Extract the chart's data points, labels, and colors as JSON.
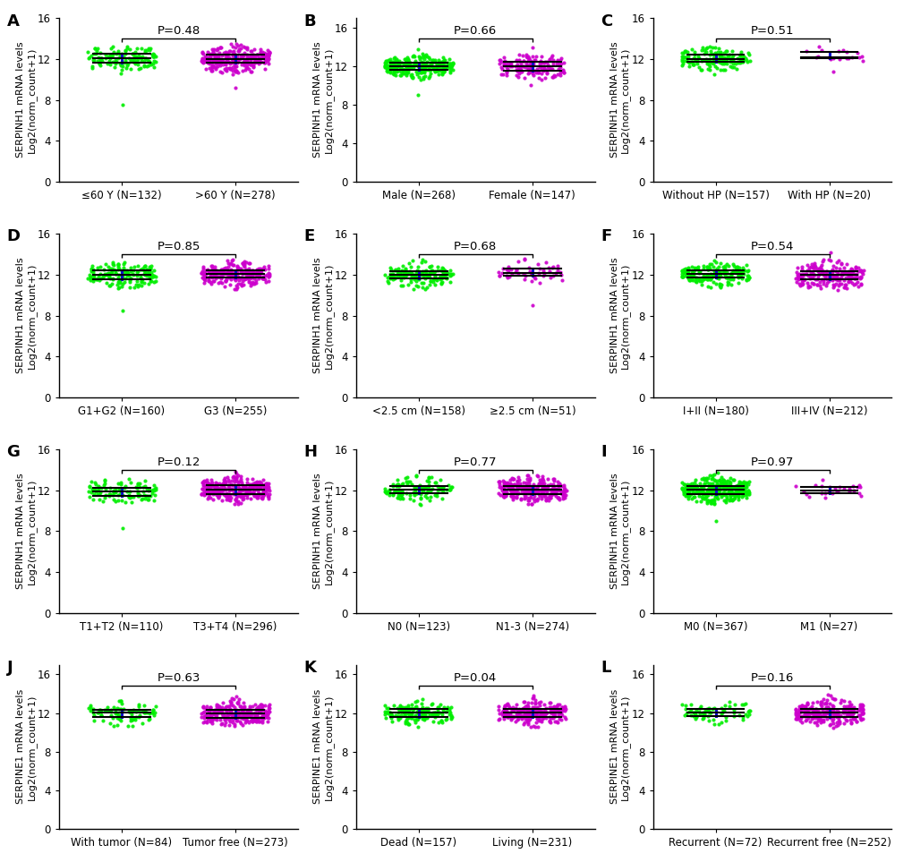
{
  "panels": [
    {
      "label": "A",
      "pval": "P=0.48",
      "groups": [
        {
          "name": "≤60 Y (N=132)",
          "n": 132,
          "color": "#00ee00",
          "mean": 12.0,
          "sd": 0.55,
          "ymin": 10.2,
          "ymax": 14.8,
          "outlier_low": 7.5
        },
        {
          "name": ">60 Y (N=278)",
          "n": 278,
          "color": "#cc00cc",
          "mean": 12.0,
          "sd": 0.65,
          "ymin": 10.5,
          "ymax": 14.2,
          "outlier_low": 9.2
        }
      ],
      "ylim": [
        0,
        16
      ],
      "yticks": [
        0,
        4,
        8,
        12,
        16
      ],
      "ylabel": "SERPINH1 mRNA levels\nLog2(norm_count+1)"
    },
    {
      "label": "B",
      "pval": "P=0.66",
      "groups": [
        {
          "name": "Male (N=268)",
          "n": 268,
          "color": "#00ee00",
          "mean": 12.0,
          "sd": 0.55,
          "ymin": 10.5,
          "ymax": 13.8,
          "outlier_low": 9.0
        },
        {
          "name": "Female (N=147)",
          "n": 147,
          "color": "#cc00cc",
          "mean": 12.0,
          "sd": 0.65,
          "ymin": 10.5,
          "ymax": 14.5,
          "outlier_low": 10.0
        }
      ],
      "ylim": [
        0,
        17
      ],
      "yticks": [
        0,
        4,
        8,
        12,
        16
      ],
      "ylabel": "SERPINH1 mRNA levels\nLog2(norm_count+1)"
    },
    {
      "label": "C",
      "pval": "P=0.51",
      "groups": [
        {
          "name": "Without HP (N=157)",
          "n": 157,
          "color": "#00ee00",
          "mean": 12.0,
          "sd": 0.55,
          "ymin": 10.5,
          "ymax": 14.2,
          "outlier_low": null
        },
        {
          "name": "With HP (N=20)",
          "n": 20,
          "color": "#cc00cc",
          "mean": 12.3,
          "sd": 0.5,
          "ymin": 11.5,
          "ymax": 13.2,
          "outlier_low": 10.8
        }
      ],
      "ylim": [
        0,
        16
      ],
      "yticks": [
        0,
        4,
        8,
        12,
        16
      ],
      "ylabel": "SERPINH1 mRNA levels\nLog2(norm_count+1)"
    },
    {
      "label": "D",
      "pval": "P=0.85",
      "groups": [
        {
          "name": "G1+G2 (N=160)",
          "n": 160,
          "color": "#00ee00",
          "mean": 12.0,
          "sd": 0.55,
          "ymin": 10.5,
          "ymax": 14.0,
          "outlier_low": 8.5
        },
        {
          "name": "G3 (N=255)",
          "n": 255,
          "color": "#cc00cc",
          "mean": 12.0,
          "sd": 0.6,
          "ymin": 10.5,
          "ymax": 14.0,
          "outlier_low": null
        }
      ],
      "ylim": [
        0,
        16
      ],
      "yticks": [
        0,
        4,
        8,
        12,
        16
      ],
      "ylabel": "SERPINH1 mRNA levels\nLog2(norm_count+1)"
    },
    {
      "label": "E",
      "pval": "P=0.68",
      "groups": [
        {
          "name": "<2.5 cm (N=158)",
          "n": 158,
          "color": "#00ee00",
          "mean": 12.0,
          "sd": 0.55,
          "ymin": 10.5,
          "ymax": 14.0,
          "outlier_low": null
        },
        {
          "name": "≥2.5 cm (N=51)",
          "n": 51,
          "color": "#cc00cc",
          "mean": 12.2,
          "sd": 0.6,
          "ymin": 11.0,
          "ymax": 14.2,
          "outlier_low": 9.0
        }
      ],
      "ylim": [
        0,
        16
      ],
      "yticks": [
        0,
        4,
        8,
        12,
        16
      ],
      "ylabel": "SERPINH1 mRNA levels\nLog2(norm_count+1)"
    },
    {
      "label": "F",
      "pval": "P=0.54",
      "groups": [
        {
          "name": "I+II (N=180)",
          "n": 180,
          "color": "#00ee00",
          "mean": 12.0,
          "sd": 0.55,
          "ymin": 10.5,
          "ymax": 14.2,
          "outlier_low": null
        },
        {
          "name": "III+IV (N=212)",
          "n": 212,
          "color": "#cc00cc",
          "mean": 12.0,
          "sd": 0.65,
          "ymin": 10.5,
          "ymax": 14.5,
          "outlier_low": null
        }
      ],
      "ylim": [
        0,
        16
      ],
      "yticks": [
        0,
        4,
        8,
        12,
        16
      ],
      "ylabel": "SERPINH1 mRNA levels\nLog2(norm_count+1)"
    },
    {
      "label": "G",
      "pval": "P=0.12",
      "groups": [
        {
          "name": "T1+T2 (N=110)",
          "n": 110,
          "color": "#00ee00",
          "mean": 11.85,
          "sd": 0.55,
          "ymin": 10.5,
          "ymax": 13.8,
          "outlier_low": 8.3
        },
        {
          "name": "T3+T4 (N=296)",
          "n": 296,
          "color": "#cc00cc",
          "mean": 12.1,
          "sd": 0.6,
          "ymin": 10.5,
          "ymax": 14.5,
          "outlier_low": null
        }
      ],
      "ylim": [
        0,
        16
      ],
      "yticks": [
        0,
        4,
        8,
        12,
        16
      ],
      "ylabel": "SERPINH1 mRNA levels\nLog2(norm_count+1)"
    },
    {
      "label": "H",
      "pval": "P=0.77",
      "groups": [
        {
          "name": "N0 (N=123)",
          "n": 123,
          "color": "#00ee00",
          "mean": 12.0,
          "sd": 0.55,
          "ymin": 10.5,
          "ymax": 14.2,
          "outlier_low": null
        },
        {
          "name": "N1-3 (N=274)",
          "n": 274,
          "color": "#cc00cc",
          "mean": 12.0,
          "sd": 0.6,
          "ymin": 10.5,
          "ymax": 14.5,
          "outlier_low": null
        }
      ],
      "ylim": [
        0,
        16
      ],
      "yticks": [
        0,
        4,
        8,
        12,
        16
      ],
      "ylabel": "SERPINH1 mRNA levels\nLog2(norm_count+1)"
    },
    {
      "label": "I",
      "pval": "P=0.97",
      "groups": [
        {
          "name": "M0 (N=367)",
          "n": 367,
          "color": "#00ee00",
          "mean": 12.0,
          "sd": 0.55,
          "ymin": 10.5,
          "ymax": 14.5,
          "outlier_low": 9.0
        },
        {
          "name": "M1 (N=27)",
          "n": 27,
          "color": "#cc00cc",
          "mean": 12.05,
          "sd": 0.45,
          "ymin": 11.2,
          "ymax": 13.1,
          "outlier_low": null
        }
      ],
      "ylim": [
        0,
        16
      ],
      "yticks": [
        0,
        4,
        8,
        12,
        16
      ],
      "ylabel": "SERPINH1 mRNA levels\nLog2(norm_count+1)"
    },
    {
      "label": "J",
      "pval": "P=0.63",
      "groups": [
        {
          "name": "With tumor (N=84)",
          "n": 84,
          "color": "#00ee00",
          "mean": 12.0,
          "sd": 0.6,
          "ymin": 10.5,
          "ymax": 13.5,
          "outlier_low": null
        },
        {
          "name": "Tumor free (N=273)",
          "n": 273,
          "color": "#cc00cc",
          "mean": 12.0,
          "sd": 0.65,
          "ymin": 10.5,
          "ymax": 15.0,
          "outlier_low": null
        }
      ],
      "ylim": [
        0,
        17
      ],
      "yticks": [
        0,
        4,
        8,
        12,
        16
      ],
      "ylabel": "SERPINE1 mRNA levels\nLog2(norm_count+1)"
    },
    {
      "label": "K",
      "pval": "P=0.04",
      "groups": [
        {
          "name": "Dead (N=157)",
          "n": 157,
          "color": "#00ee00",
          "mean": 12.0,
          "sd": 0.55,
          "ymin": 10.5,
          "ymax": 13.5,
          "outlier_low": null
        },
        {
          "name": "Living (N=231)",
          "n": 231,
          "color": "#cc00cc",
          "mean": 12.05,
          "sd": 0.6,
          "ymin": 10.5,
          "ymax": 14.5,
          "outlier_low": null
        }
      ],
      "ylim": [
        0,
        17
      ],
      "yticks": [
        0,
        4,
        8,
        12,
        16
      ],
      "ylabel": "SERPINE1 mRNA levels\nLog2(norm_count+1)"
    },
    {
      "label": "L",
      "pval": "P=0.16",
      "groups": [
        {
          "name": "Recurrent (N=72)",
          "n": 72,
          "color": "#00ee00",
          "mean": 12.0,
          "sd": 0.55,
          "ymin": 10.5,
          "ymax": 13.2,
          "outlier_low": null
        },
        {
          "name": "Recurrent free (N=252)",
          "n": 252,
          "color": "#cc00cc",
          "mean": 12.0,
          "sd": 0.65,
          "ymin": 10.5,
          "ymax": 14.5,
          "outlier_low": null
        }
      ],
      "ylim": [
        0,
        17
      ],
      "yticks": [
        0,
        4,
        8,
        12,
        16
      ],
      "ylabel": "SERPINE1 mRNA levels\nLog2(norm_count+1)"
    }
  ],
  "green_color": "#22dd00",
  "magenta_color": "#cc00cc",
  "blue_color": "#1010cc",
  "dot_size": 9,
  "dot_alpha": 0.9,
  "label_fontsize": 13,
  "tick_fontsize": 8.5,
  "pval_fontsize": 9.5,
  "ylabel_fontsize": 8.0
}
